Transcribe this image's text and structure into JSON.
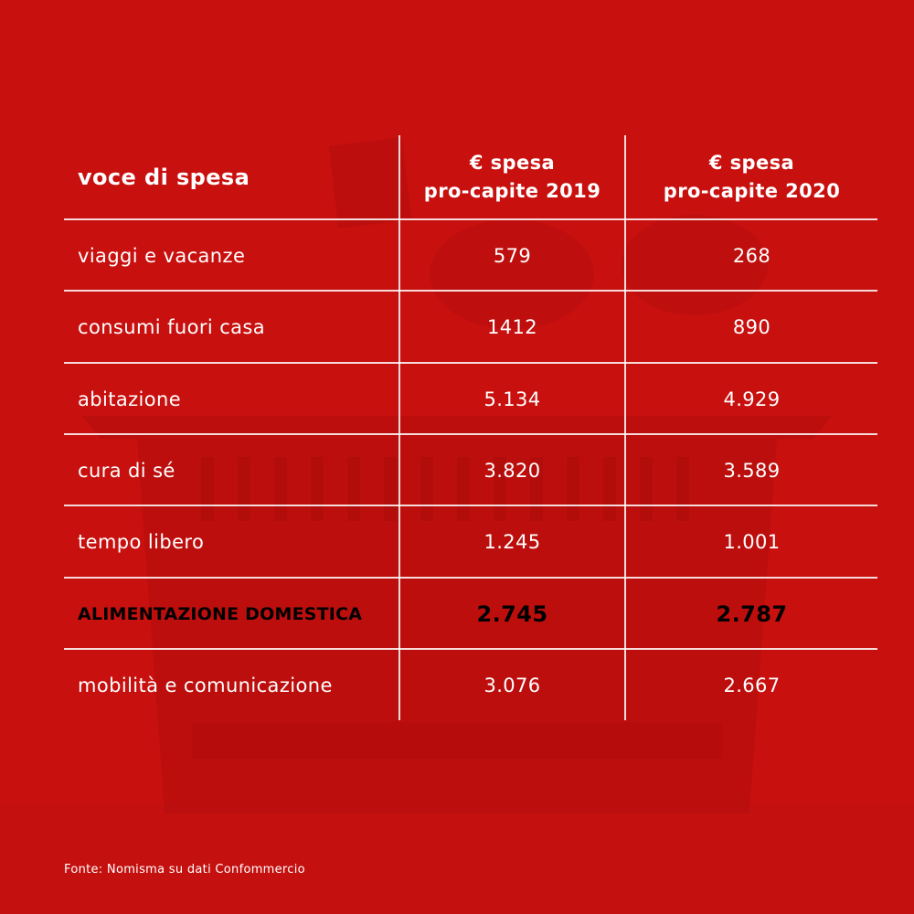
{
  "colors": {
    "background": "#c8100f",
    "text": "#ffffff",
    "highlight_text": "#000000",
    "rule": "#ffffff"
  },
  "chart_data": {
    "type": "table",
    "columns": [
      "voce di spesa",
      "€ spesa pro-capite 2019",
      "€ spesa pro-capite 2020"
    ],
    "header": {
      "category": "voce di spesa",
      "col_2019_line1": "€ spesa",
      "col_2019_line2": "pro-capite 2019",
      "col_2020_line1": "€ spesa",
      "col_2020_line2": "pro-capite 2020"
    },
    "rows": [
      {
        "label": "viaggi e vacanze",
        "v2019": "579",
        "v2020": "268",
        "highlight": false
      },
      {
        "label": "consumi fuori casa",
        "v2019": "1412",
        "v2020": "890",
        "highlight": false
      },
      {
        "label": "abitazione",
        "v2019": "5.134",
        "v2020": "4.929",
        "highlight": false
      },
      {
        "label": "cura di sé",
        "v2019": "3.820",
        "v2020": "3.589",
        "highlight": false
      },
      {
        "label": "tempo libero",
        "v2019": "1.245",
        "v2020": "1.001",
        "highlight": false
      },
      {
        "label": "ALIMENTAZIONE DOMESTICA",
        "v2019": "2.745",
        "v2020": "2.787",
        "highlight": true
      },
      {
        "label": "mobilità e comunicazione",
        "v2019": "3.076",
        "v2020": "2.667",
        "highlight": false
      }
    ]
  },
  "source": "Fonte: Nomisma su dati Confommercio"
}
